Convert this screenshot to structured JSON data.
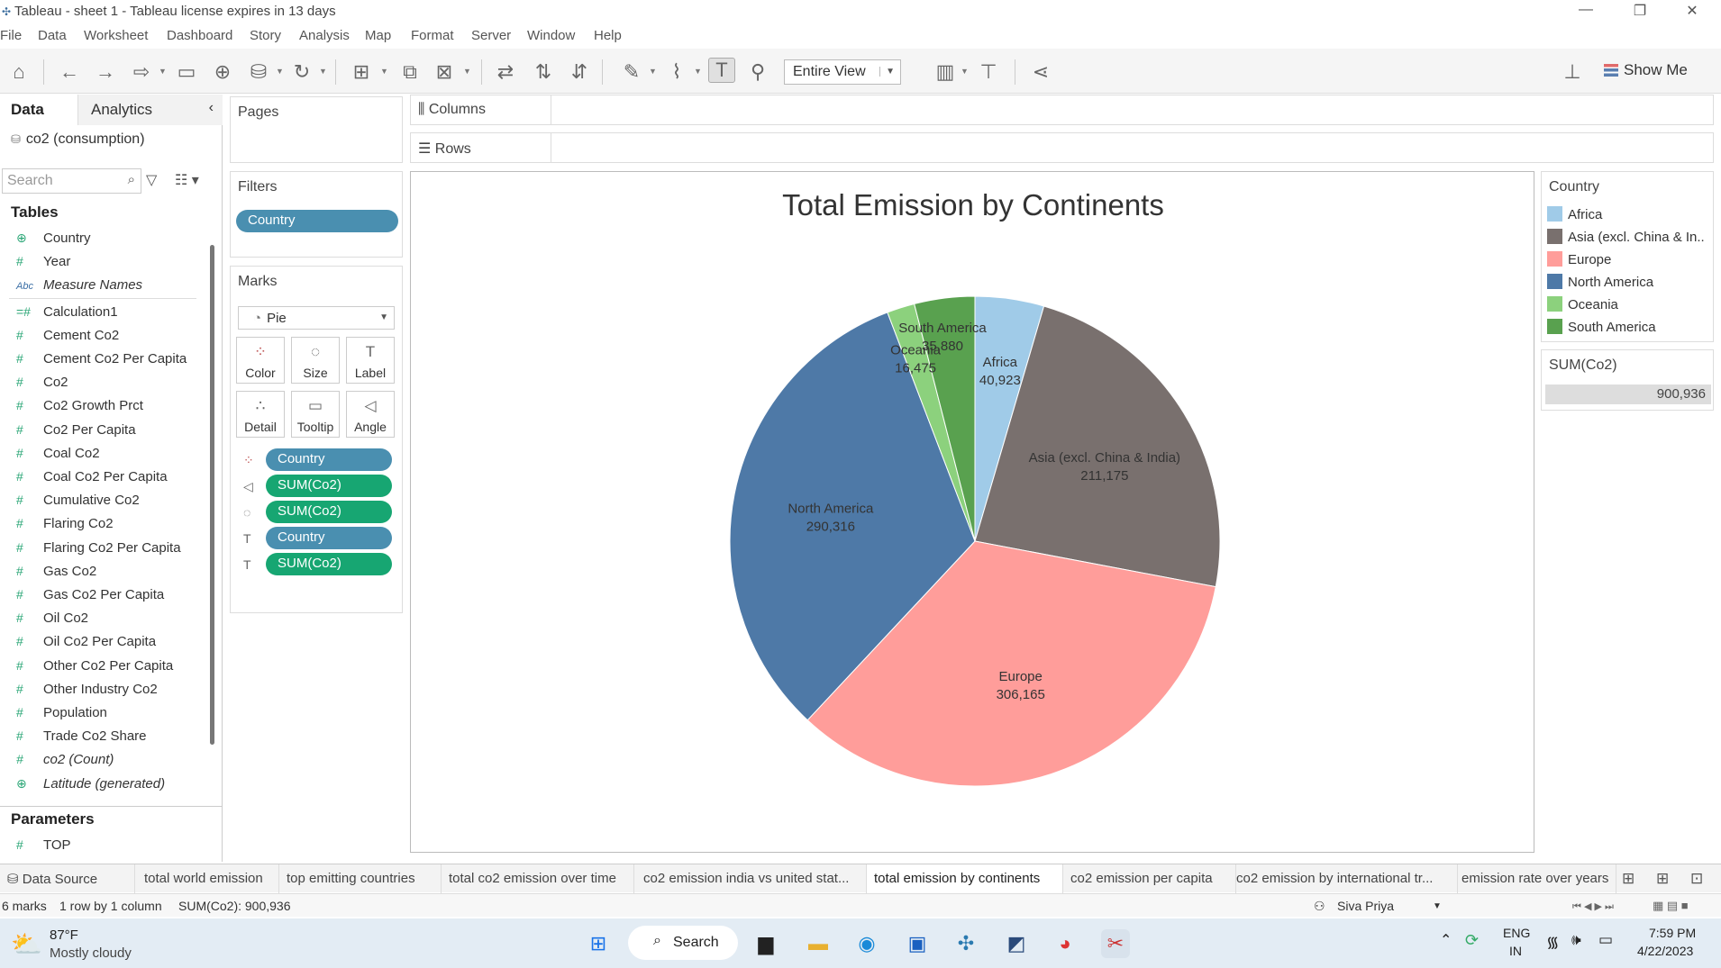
{
  "titlebar": {
    "title": "Tableau - sheet 1 - Tableau license expires in 13 days"
  },
  "menu": [
    "File",
    "Data",
    "Worksheet",
    "Dashboard",
    "Story",
    "Analysis",
    "Map",
    "Format",
    "Server",
    "Window",
    "Help"
  ],
  "toolbar": {
    "view_mode": "Entire View",
    "show_me": "Show Me"
  },
  "datapane": {
    "tab_data": "Data",
    "tab_analytics": "Analytics",
    "datasource": "co2 (consumption)",
    "search_placeholder": "Search",
    "tables_heading": "Tables",
    "fields": [
      {
        "name": "Country",
        "type": "geo"
      },
      {
        "name": "Year",
        "type": "num"
      },
      {
        "name": "Measure Names",
        "type": "abc"
      },
      {
        "name": "Calculation1",
        "type": "calc"
      },
      {
        "name": "Cement Co2",
        "type": "num"
      },
      {
        "name": "Cement Co2 Per Capita",
        "type": "num"
      },
      {
        "name": "Co2",
        "type": "num"
      },
      {
        "name": "Co2 Growth Prct",
        "type": "num"
      },
      {
        "name": "Co2 Per Capita",
        "type": "num"
      },
      {
        "name": "Coal Co2",
        "type": "num"
      },
      {
        "name": "Coal Co2 Per Capita",
        "type": "num"
      },
      {
        "name": "Cumulative Co2",
        "type": "num"
      },
      {
        "name": "Flaring Co2",
        "type": "num"
      },
      {
        "name": "Flaring Co2 Per Capita",
        "type": "num"
      },
      {
        "name": "Gas Co2",
        "type": "num"
      },
      {
        "name": "Gas Co2 Per Capita",
        "type": "num"
      },
      {
        "name": "Oil Co2",
        "type": "num"
      },
      {
        "name": "Oil Co2 Per Capita",
        "type": "num"
      },
      {
        "name": "Other Co2 Per Capita",
        "type": "num"
      },
      {
        "name": "Other Industry Co2",
        "type": "num"
      },
      {
        "name": "Population",
        "type": "num"
      },
      {
        "name": "Trade Co2 Share",
        "type": "num"
      },
      {
        "name": "co2 (Count)",
        "type": "num"
      },
      {
        "name": "Latitude (generated)",
        "type": "geo"
      }
    ],
    "parameters_heading": "Parameters",
    "parameters": [
      {
        "name": "TOP",
        "type": "num"
      }
    ]
  },
  "shelves": {
    "pages": "Pages",
    "filters": "Filters",
    "filter_pill": "Country",
    "marks": "Marks",
    "mark_type": "Pie",
    "buttons": [
      "Color",
      "Size",
      "Label",
      "Detail",
      "Tooltip",
      "Angle"
    ],
    "mark_pills": [
      {
        "icon": "color",
        "label": "Country",
        "kind": "dim"
      },
      {
        "icon": "angle",
        "label": "SUM(Co2)",
        "kind": "measure"
      },
      {
        "icon": "size",
        "label": "SUM(Co2)",
        "kind": "measure"
      },
      {
        "icon": "label",
        "label": "Country",
        "kind": "dim"
      },
      {
        "icon": "label",
        "label": "SUM(Co2)",
        "kind": "measure"
      }
    ],
    "columns": "Columns",
    "rows": "Rows"
  },
  "chart_data": {
    "type": "pie",
    "title": "Total Emission by Continents",
    "categories": [
      "Africa",
      "Asia (excl. China & India)",
      "Europe",
      "North America",
      "Oceania",
      "South America"
    ],
    "values": [
      40923,
      211175,
      306165,
      290316,
      16475,
      35880
    ],
    "value_labels": [
      "40,923",
      "211,175",
      "306,165",
      "290,316",
      "16,475",
      "35,880"
    ],
    "colors": [
      "#a0cbe8",
      "#79706e",
      "#ff9d9a",
      "#4e79a7",
      "#8cd17d",
      "#59a14f"
    ],
    "legend": "right"
  },
  "legend": {
    "title": "Country",
    "items": [
      "Africa",
      "Asia (excl. China & In..",
      "Europe",
      "North America",
      "Oceania",
      "South America"
    ],
    "sum_title": "SUM(Co2)",
    "sum_value": "900,936"
  },
  "sheettabs": [
    "Data Source",
    "total world emission",
    "top emitting countries",
    "total co2 emission over time",
    "co2 emission india vs united stat...",
    "total emission by continents",
    "co2 emission per capita",
    "co2 emission by international tr...",
    "emission rate over years"
  ],
  "statusbar": {
    "marks": "6 marks",
    "rows": "1 row by 1 column",
    "sum": "SUM(Co2): 900,936",
    "user": "Siva Priya"
  },
  "taskbar": {
    "temp": "87°F",
    "weather": "Mostly cloudy",
    "search": "Search",
    "lang1": "ENG",
    "lang2": "IN",
    "time": "7:59 PM",
    "date": "4/22/2023"
  }
}
